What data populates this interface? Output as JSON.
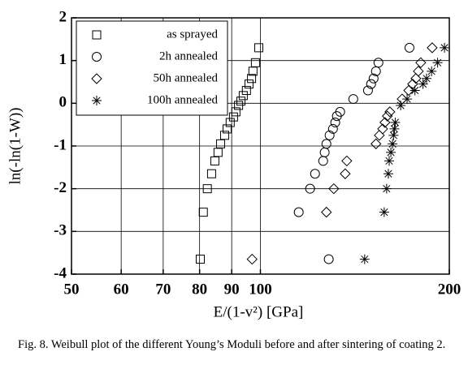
{
  "chart_data": {
    "type": "scatter",
    "x_label": "E/(1-v²) [GPa]",
    "y_label": "ln(-ln(1-W))",
    "caption": "Fig. 8. Weibull plot of the different Young’s Moduli before and after sintering of coating 2.",
    "x_scale": "log",
    "xlim": [
      50,
      200
    ],
    "xticks": [
      50,
      60,
      70,
      80,
      90,
      100,
      200
    ],
    "ylim": [
      -4,
      2
    ],
    "yticks": [
      -4,
      -3,
      -2,
      -1,
      0,
      1,
      2
    ],
    "grid": true,
    "legend": "upper left",
    "series": [
      {
        "name": "as sprayed",
        "marker": "square",
        "color": "#000000",
        "x": [
          99.4,
          98.2,
          97.3,
          96.8,
          95.9,
          95.0,
          93.9,
          93.1,
          92.3,
          91.4,
          90.6,
          89.5,
          88.5,
          87.7,
          86.4,
          85.6,
          84.6,
          83.6,
          82.3,
          81.1,
          80.2
        ],
        "values": [
          1.3,
          0.95,
          0.75,
          0.58,
          0.45,
          0.3,
          0.18,
          0.05,
          -0.05,
          -0.2,
          -0.32,
          -0.45,
          -0.6,
          -0.75,
          -0.95,
          -1.15,
          -1.35,
          -1.65,
          -2.0,
          -2.55,
          -3.65
        ]
      },
      {
        "name": "2h annealed",
        "marker": "circle",
        "color": "#000000",
        "x": [
          172.8,
          154.2,
          152.8,
          151.5,
          150.1,
          148.4,
          140.6,
          134.0,
          132.4,
          131.6,
          130.5,
          128.9,
          127.4,
          126.6,
          125.9,
          122.2,
          120.0,
          115.1,
          128.5
        ],
        "values": [
          1.3,
          0.95,
          0.75,
          0.58,
          0.45,
          0.3,
          0.1,
          -0.2,
          -0.3,
          -0.45,
          -0.6,
          -0.75,
          -0.95,
          -1.15,
          -1.35,
          -1.65,
          -2.0,
          -2.55,
          -3.65
        ]
      },
      {
        "name": "50h annealed",
        "marker": "diamond",
        "color": "#000000",
        "x": [
          187.8,
          180.1,
          178.5,
          176.9,
          174.8,
          172.3,
          168.2,
          160.8,
          159.3,
          157.9,
          156.6,
          154.7,
          152.8,
          137.3,
          136.5,
          130.9,
          127.4,
          97.0
        ],
        "values": [
          1.3,
          0.95,
          0.75,
          0.58,
          0.45,
          0.3,
          0.1,
          -0.2,
          -0.3,
          -0.45,
          -0.6,
          -0.75,
          -0.95,
          -1.35,
          -1.65,
          -2.0,
          -2.55,
          -3.65
        ]
      },
      {
        "name": "100h annealed",
        "marker": "star",
        "color": "#000000",
        "x": [
          196.5,
          191.6,
          187.4,
          184.0,
          181.6,
          176.3,
          171.3,
          167.3,
          164.0,
          163.5,
          163.0,
          162.4,
          161.4,
          160.4,
          159.9,
          158.9,
          157.5,
          146.6
        ],
        "values": [
          1.3,
          0.95,
          0.75,
          0.58,
          0.45,
          0.3,
          0.1,
          -0.05,
          -0.45,
          -0.6,
          -0.75,
          -0.95,
          -1.15,
          -1.35,
          -1.65,
          -2.0,
          -2.55,
          -3.65
        ]
      }
    ]
  }
}
